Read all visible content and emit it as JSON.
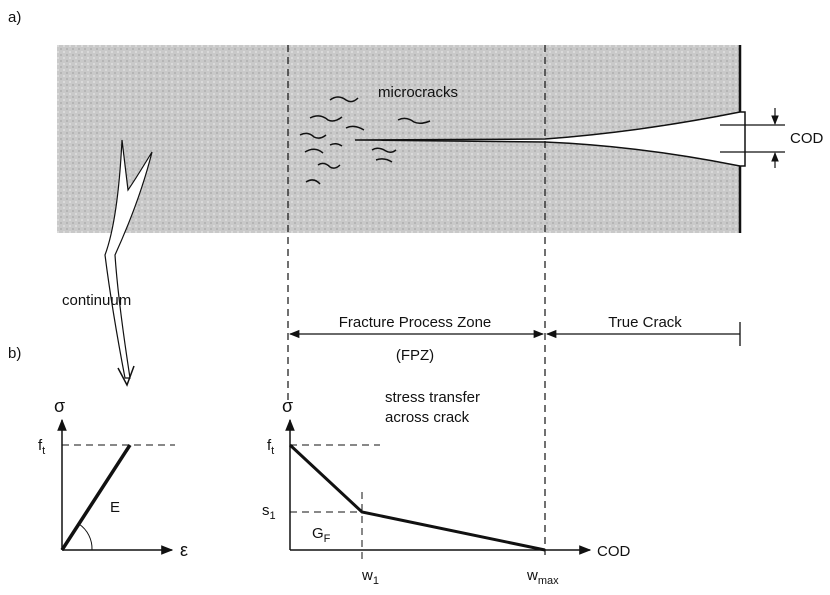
{
  "labels": {
    "part_a": "a)",
    "part_b": "b)",
    "microcracks": "microcracks",
    "cod_top": "COD",
    "continuum": "continuum",
    "fpz": "Fracture Process Zone",
    "fpz_abbr": "(FPZ)",
    "true_crack": "True Crack"
  },
  "left_plot": {
    "y_axis": "σ",
    "ft": {
      "main": "f",
      "sub": "t"
    },
    "modulus": "E",
    "x_axis": "ε"
  },
  "right_plot": {
    "y_axis": "σ",
    "ft": {
      "main": "f",
      "sub": "t"
    },
    "s1": {
      "main": "s",
      "sub": "1"
    },
    "gf": {
      "main": "G",
      "sub": "F"
    },
    "w1": {
      "main": "w",
      "sub": "1"
    },
    "wmax": {
      "main": "w",
      "sub": "max"
    },
    "x_axis": "COD",
    "note": [
      "stress transfer",
      "across crack"
    ]
  }
}
